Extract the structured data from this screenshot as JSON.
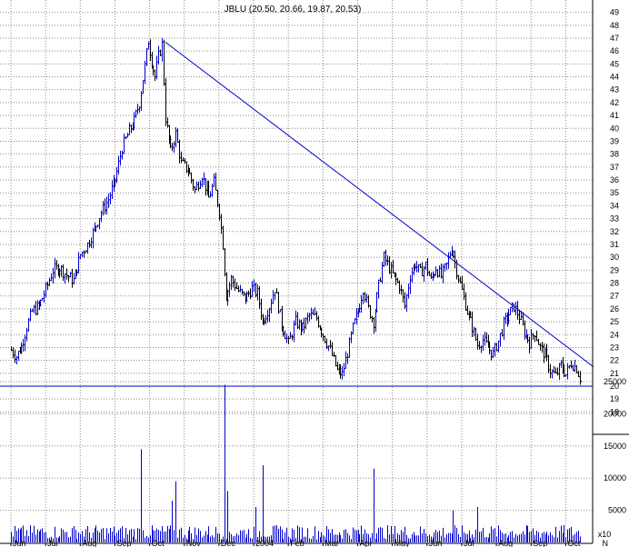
{
  "chart_data": {
    "type": "ohlc_with_volume",
    "title": "JBLU (20.50, 20.66, 19.87, 20.53)",
    "colors": {
      "up": "#0000cc",
      "down": "#000000",
      "trendline": "#0000cc",
      "grid": "#8c8c8c",
      "background": "#ffffff"
    },
    "grid": true,
    "price_axis": {
      "min": 18,
      "max": 49,
      "ticks": [
        18,
        19,
        20,
        21,
        22,
        23,
        24,
        25,
        26,
        27,
        28,
        29,
        30,
        31,
        32,
        33,
        34,
        35,
        36,
        37,
        38,
        39,
        40,
        41,
        42,
        43,
        44,
        45,
        46,
        47,
        48,
        49
      ],
      "side": "right"
    },
    "volume_axis": {
      "min": 0,
      "max": 25000,
      "ticks": [
        5000,
        10000,
        15000,
        20000,
        25000
      ],
      "unit": "x10",
      "side": "right"
    },
    "x_axis": {
      "months": [
        "Jun",
        "Jul",
        "Aug",
        "Sep",
        "Oct",
        "Nov",
        "Dec",
        "2004",
        "Feb",
        "Mar",
        "Apr",
        "May",
        "Jun",
        "Jul",
        "Aug",
        "Sep",
        "Oct",
        "N"
      ]
    },
    "price_series": [
      {
        "m": 0.0,
        "p": 22.8
      },
      {
        "m": 0.15,
        "p": 22.3
      },
      {
        "m": 0.3,
        "p": 23.1
      },
      {
        "m": 0.45,
        "p": 24.6
      },
      {
        "m": 0.6,
        "p": 25.8
      },
      {
        "m": 0.8,
        "p": 26.2
      },
      {
        "m": 1.0,
        "p": 27.5
      },
      {
        "m": 1.2,
        "p": 29.0
      },
      {
        "m": 1.4,
        "p": 29.2
      },
      {
        "m": 1.6,
        "p": 28.6
      },
      {
        "m": 1.8,
        "p": 28.2
      },
      {
        "m": 2.0,
        "p": 30.2
      },
      {
        "m": 2.2,
        "p": 31.0
      },
      {
        "m": 2.4,
        "p": 32.2
      },
      {
        "m": 2.6,
        "p": 33.5
      },
      {
        "m": 2.8,
        "p": 34.5
      },
      {
        "m": 3.0,
        "p": 36.0
      },
      {
        "m": 3.2,
        "p": 38.5
      },
      {
        "m": 3.4,
        "p": 39.8
      },
      {
        "m": 3.55,
        "p": 40.6
      },
      {
        "m": 3.7,
        "p": 42.0
      },
      {
        "m": 3.85,
        "p": 44.8
      },
      {
        "m": 3.95,
        "p": 46.8
      },
      {
        "m": 4.05,
        "p": 45.2
      },
      {
        "m": 4.15,
        "p": 44.0
      },
      {
        "m": 4.25,
        "p": 45.6
      },
      {
        "m": 4.35,
        "p": 46.5
      },
      {
        "m": 4.45,
        "p": 40.8
      },
      {
        "m": 4.6,
        "p": 38.2
      },
      {
        "m": 4.75,
        "p": 39.6
      },
      {
        "m": 4.9,
        "p": 37.3
      },
      {
        "m": 5.1,
        "p": 36.8
      },
      {
        "m": 5.3,
        "p": 35.2
      },
      {
        "m": 5.5,
        "p": 36.4
      },
      {
        "m": 5.7,
        "p": 34.6
      },
      {
        "m": 5.85,
        "p": 35.8
      },
      {
        "m": 6.0,
        "p": 33.5
      },
      {
        "m": 6.1,
        "p": 31.0
      },
      {
        "m": 6.2,
        "p": 27.0
      },
      {
        "m": 6.35,
        "p": 28.3
      },
      {
        "m": 6.55,
        "p": 27.4
      },
      {
        "m": 6.75,
        "p": 26.8
      },
      {
        "m": 6.95,
        "p": 27.6
      },
      {
        "m": 7.1,
        "p": 27.2
      },
      {
        "m": 7.25,
        "p": 25.0
      },
      {
        "m": 7.45,
        "p": 26.2
      },
      {
        "m": 7.6,
        "p": 27.6
      },
      {
        "m": 7.8,
        "p": 24.8
      },
      {
        "m": 8.0,
        "p": 23.3
      },
      {
        "m": 8.2,
        "p": 25.0
      },
      {
        "m": 8.4,
        "p": 24.5
      },
      {
        "m": 8.6,
        "p": 25.5
      },
      {
        "m": 8.8,
        "p": 25.3
      },
      {
        "m": 9.0,
        "p": 24.0
      },
      {
        "m": 9.2,
        "p": 22.8
      },
      {
        "m": 9.4,
        "p": 21.2
      },
      {
        "m": 9.55,
        "p": 20.9
      },
      {
        "m": 9.7,
        "p": 22.6
      },
      {
        "m": 9.85,
        "p": 24.5
      },
      {
        "m": 10.0,
        "p": 25.8
      },
      {
        "m": 10.15,
        "p": 27.6
      },
      {
        "m": 10.3,
        "p": 26.0
      },
      {
        "m": 10.45,
        "p": 25.0
      },
      {
        "m": 10.6,
        "p": 27.8
      },
      {
        "m": 10.75,
        "p": 30.0
      },
      {
        "m": 10.9,
        "p": 29.2
      },
      {
        "m": 11.05,
        "p": 28.4
      },
      {
        "m": 11.2,
        "p": 27.8
      },
      {
        "m": 11.35,
        "p": 26.2
      },
      {
        "m": 11.5,
        "p": 28.6
      },
      {
        "m": 11.65,
        "p": 29.5
      },
      {
        "m": 11.8,
        "p": 28.8
      },
      {
        "m": 11.95,
        "p": 29.4
      },
      {
        "m": 12.1,
        "p": 28.2
      },
      {
        "m": 12.25,
        "p": 29.2
      },
      {
        "m": 12.4,
        "p": 28.5
      },
      {
        "m": 12.55,
        "p": 29.4
      },
      {
        "m": 12.7,
        "p": 30.8
      },
      {
        "m": 12.85,
        "p": 29.0
      },
      {
        "m": 13.0,
        "p": 27.4
      },
      {
        "m": 13.15,
        "p": 25.8
      },
      {
        "m": 13.3,
        "p": 24.6
      },
      {
        "m": 13.45,
        "p": 23.2
      },
      {
        "m": 13.6,
        "p": 23.6
      },
      {
        "m": 13.75,
        "p": 23.0
      },
      {
        "m": 13.9,
        "p": 22.5
      },
      {
        "m": 14.05,
        "p": 23.5
      },
      {
        "m": 14.2,
        "p": 24.8
      },
      {
        "m": 14.35,
        "p": 25.6
      },
      {
        "m": 14.5,
        "p": 26.2
      },
      {
        "m": 14.65,
        "p": 25.4
      },
      {
        "m": 14.8,
        "p": 24.2
      },
      {
        "m": 14.95,
        "p": 23.4
      },
      {
        "m": 15.1,
        "p": 24.2
      },
      {
        "m": 15.25,
        "p": 23.0
      },
      {
        "m": 15.4,
        "p": 22.4
      },
      {
        "m": 15.55,
        "p": 21.2
      },
      {
        "m": 15.7,
        "p": 20.8
      },
      {
        "m": 15.85,
        "p": 21.6
      },
      {
        "m": 16.0,
        "p": 20.9
      },
      {
        "m": 16.15,
        "p": 21.8
      },
      {
        "m": 16.3,
        "p": 21.4
      },
      {
        "m": 16.42,
        "p": 20.5
      }
    ],
    "volume_series": [
      {
        "m": 3.75,
        "v": 14500
      },
      {
        "m": 4.65,
        "v": 6500
      },
      {
        "m": 4.75,
        "v": 9500
      },
      {
        "m": 6.15,
        "v": 24500
      },
      {
        "m": 6.25,
        "v": 8000
      },
      {
        "m": 7.05,
        "v": 5500
      },
      {
        "m": 7.25,
        "v": 12000
      },
      {
        "m": 10.45,
        "v": 11500
      },
      {
        "m": 12.75,
        "v": 5000
      },
      {
        "m": 13.45,
        "v": 5500
      }
    ],
    "trendline": {
      "from": {
        "m": 4.45,
        "p": 46.7
      },
      "to": {
        "m": 16.8,
        "p": 21.5
      }
    },
    "support_line": {
      "price": 20.0
    }
  }
}
